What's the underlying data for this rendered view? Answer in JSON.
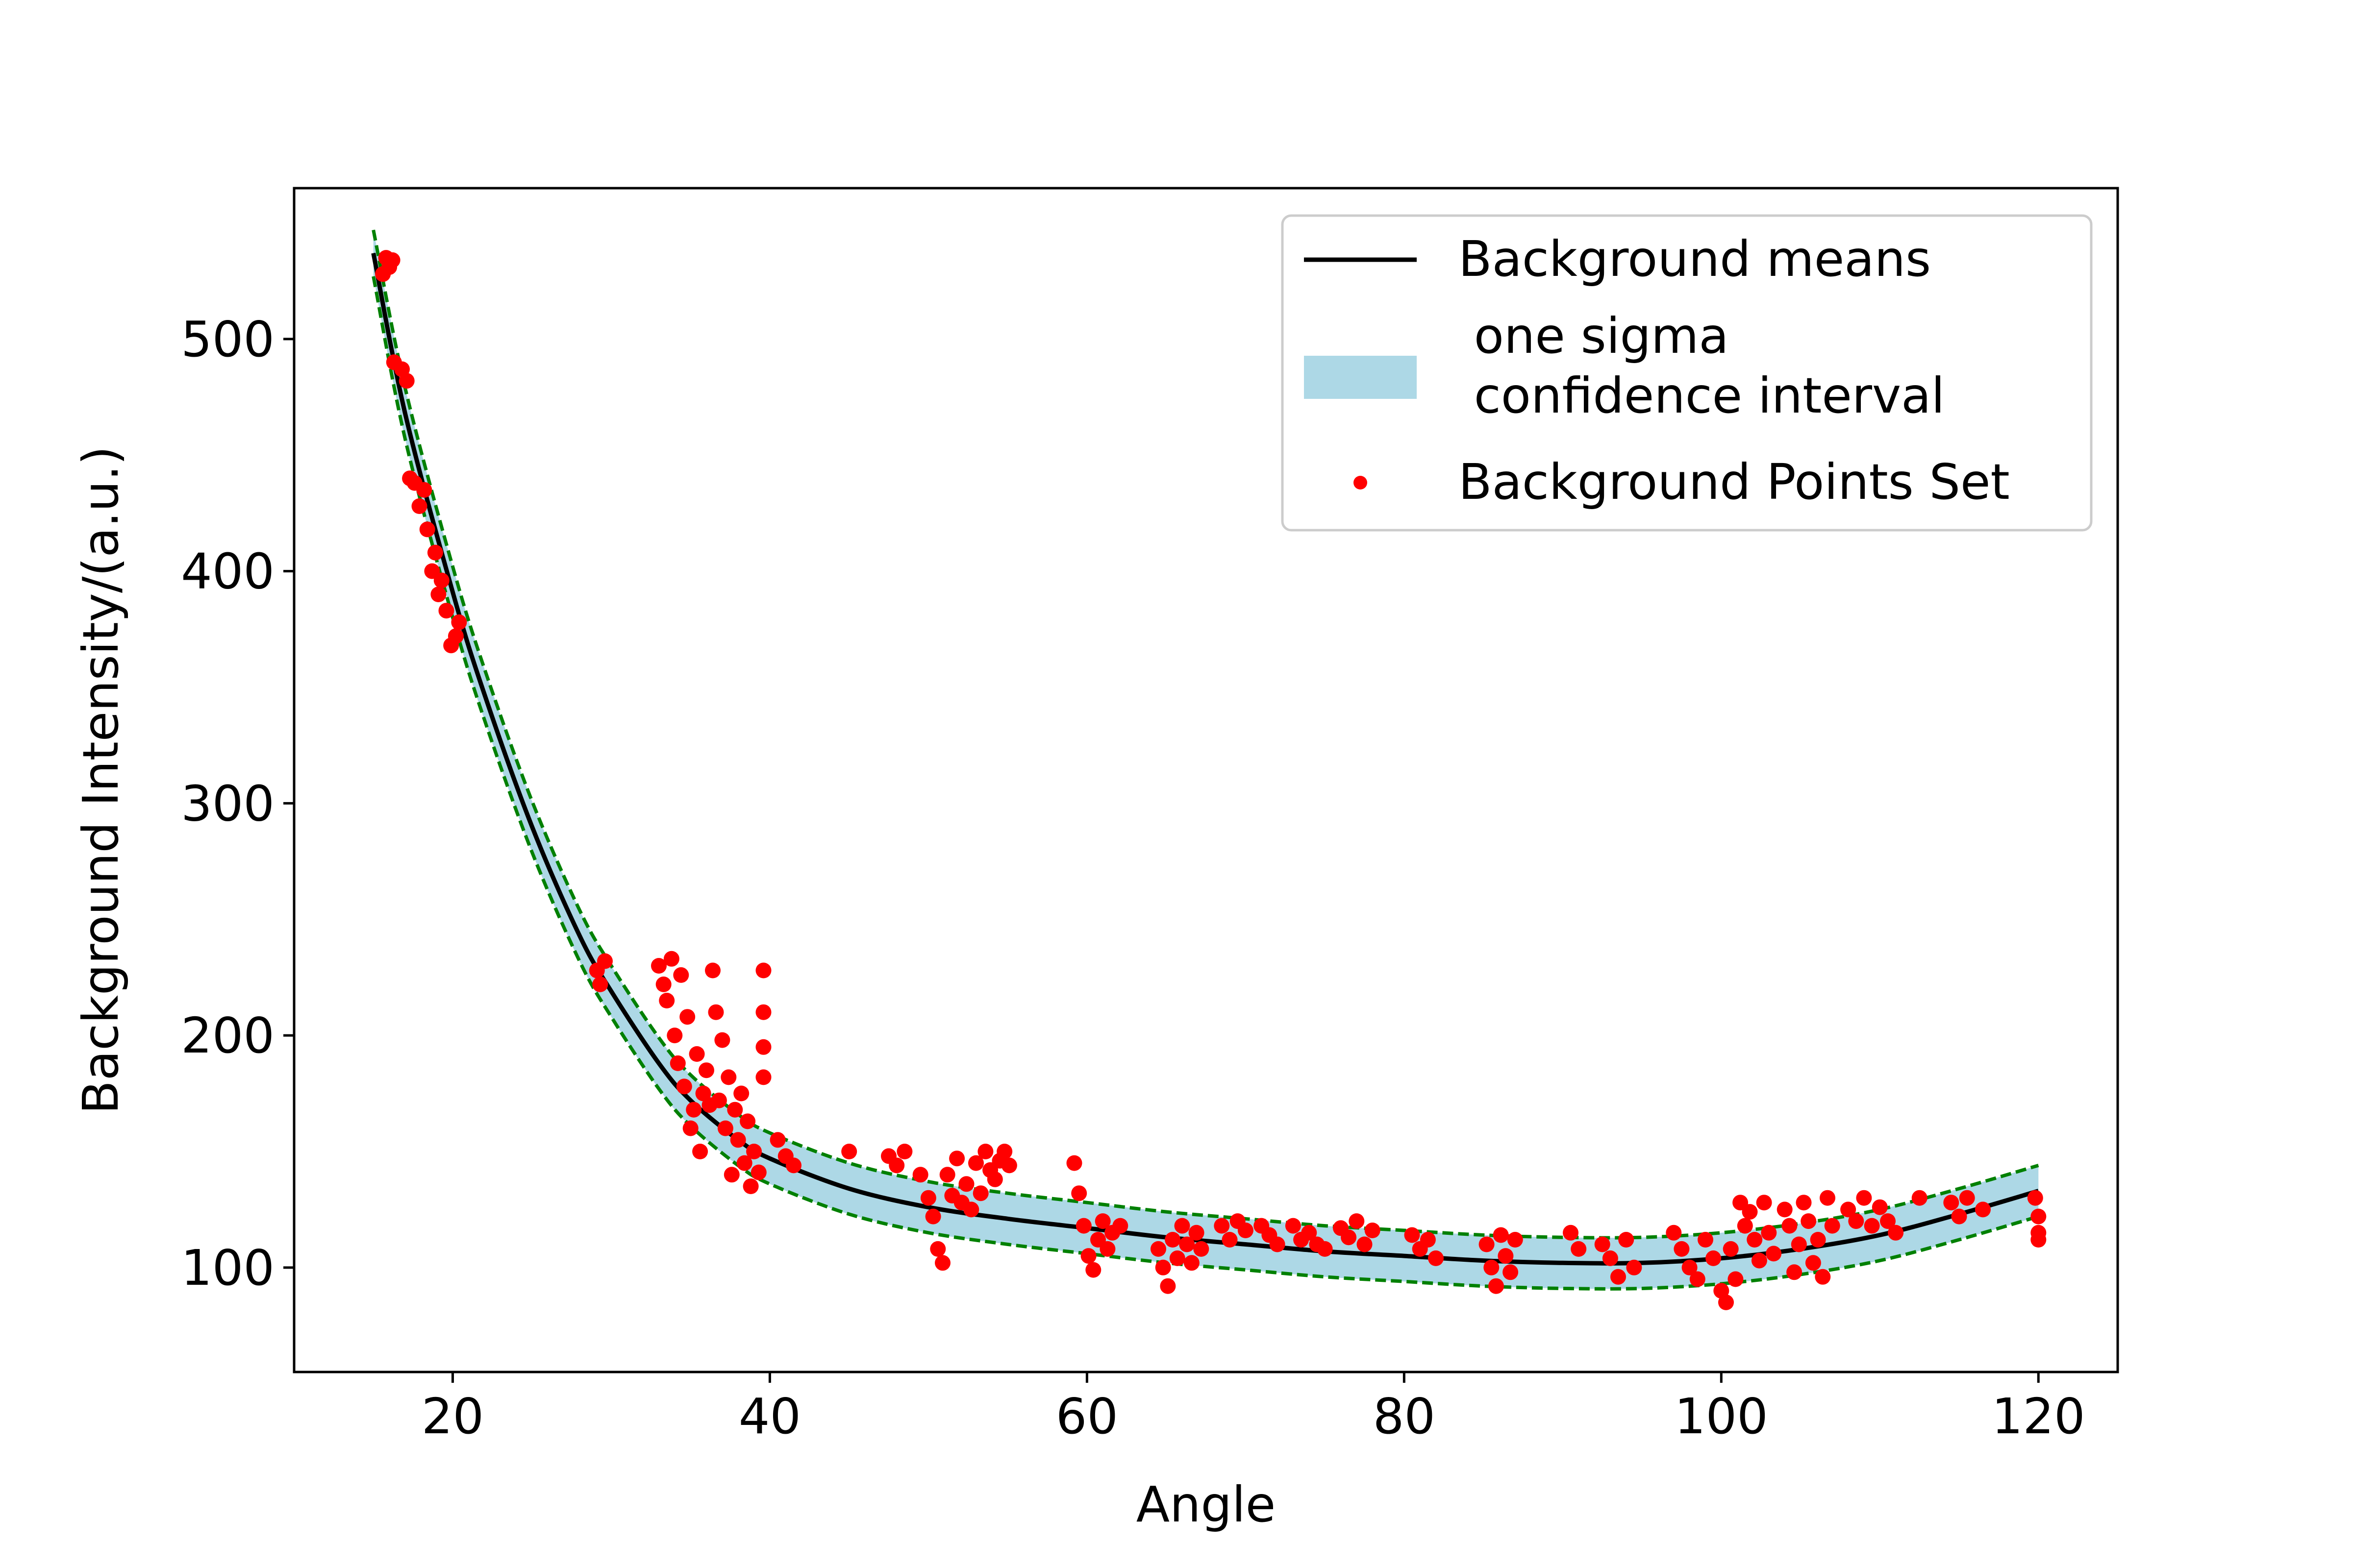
{
  "chart_data": {
    "type": "scatter",
    "title": "",
    "xlabel": "Angle",
    "ylabel": "Background Intensity/(a.u.)",
    "xlim": [
      10,
      125
    ],
    "ylim": [
      55,
      565
    ],
    "xticks": [
      20,
      40,
      60,
      80,
      100,
      120
    ],
    "yticks": [
      100,
      200,
      300,
      400,
      500
    ],
    "grid": false,
    "legend_position": "upper right",
    "colors": {
      "mean": "#000000",
      "band": "#add8e6",
      "band_edge": "#008000",
      "points": "#ff0000"
    },
    "series": [
      {
        "name": "Background means",
        "kind": "line",
        "x": [
          15,
          17,
          20,
          22,
          25,
          28,
          30,
          33,
          35,
          38,
          40,
          45,
          50,
          55,
          60,
          65,
          70,
          75,
          80,
          85,
          90,
          95,
          100,
          105,
          110,
          115,
          120
        ],
        "y": [
          537,
          468,
          391,
          347,
          290,
          243,
          219,
          188,
          172,
          155,
          147,
          134,
          126,
          121,
          117,
          113,
          110,
          107,
          105,
          103,
          102,
          102,
          104,
          108,
          114,
          123,
          133
        ]
      },
      {
        "name": "one sigma\n confidence interval",
        "kind": "band",
        "x": [
          15,
          17,
          20,
          22,
          25,
          28,
          30,
          33,
          35,
          38,
          40,
          45,
          50,
          55,
          60,
          65,
          70,
          75,
          80,
          85,
          90,
          95,
          100,
          105,
          110,
          115,
          120
        ],
        "lower": [
          527,
          457,
          380,
          336,
          279,
          232,
          208,
          177,
          161,
          144,
          136,
          123,
          115,
          110,
          106,
          102,
          99,
          96,
          94,
          92,
          91,
          91,
          93,
          97,
          103,
          112,
          122
        ],
        "upper": [
          547,
          479,
          402,
          358,
          301,
          254,
          230,
          199,
          183,
          166,
          158,
          145,
          137,
          132,
          128,
          124,
          121,
          118,
          116,
          114,
          113,
          113,
          115,
          119,
          125,
          134,
          144
        ]
      },
      {
        "name": "Background Points Set",
        "kind": "scatter",
        "points": [
          [
            15.6,
            528
          ],
          [
            15.8,
            535
          ],
          [
            16.0,
            531
          ],
          [
            16.2,
            534
          ],
          [
            16.3,
            490
          ],
          [
            16.8,
            487
          ],
          [
            17.1,
            482
          ],
          [
            17.3,
            440
          ],
          [
            17.6,
            438
          ],
          [
            17.9,
            428
          ],
          [
            18.2,
            435
          ],
          [
            18.4,
            418
          ],
          [
            18.7,
            400
          ],
          [
            18.9,
            408
          ],
          [
            19.1,
            390
          ],
          [
            19.3,
            396
          ],
          [
            19.6,
            383
          ],
          [
            19.9,
            368
          ],
          [
            20.2,
            372
          ],
          [
            20.4,
            378
          ],
          [
            29.1,
            228
          ],
          [
            29.3,
            222
          ],
          [
            29.6,
            232
          ],
          [
            33.0,
            230
          ],
          [
            33.3,
            222
          ],
          [
            33.5,
            215
          ],
          [
            33.8,
            233
          ],
          [
            34.0,
            200
          ],
          [
            34.2,
            188
          ],
          [
            34.4,
            226
          ],
          [
            34.6,
            178
          ],
          [
            34.8,
            208
          ],
          [
            35.0,
            160
          ],
          [
            35.2,
            168
          ],
          [
            35.4,
            192
          ],
          [
            35.6,
            150
          ],
          [
            35.8,
            175
          ],
          [
            36.0,
            185
          ],
          [
            36.2,
            170
          ],
          [
            36.4,
            228
          ],
          [
            36.6,
            210
          ],
          [
            36.8,
            172
          ],
          [
            37.0,
            198
          ],
          [
            37.2,
            160
          ],
          [
            37.4,
            182
          ],
          [
            37.6,
            140
          ],
          [
            37.8,
            168
          ],
          [
            38.0,
            155
          ],
          [
            38.2,
            175
          ],
          [
            38.4,
            145
          ],
          [
            38.6,
            163
          ],
          [
            38.8,
            135
          ],
          [
            39.0,
            150
          ],
          [
            39.3,
            141
          ],
          [
            39.6,
            228
          ],
          [
            39.6,
            210
          ],
          [
            39.6,
            195
          ],
          [
            39.6,
            182
          ],
          [
            40.5,
            155
          ],
          [
            41.0,
            148
          ],
          [
            41.5,
            144
          ],
          [
            45.0,
            150
          ],
          [
            47.5,
            148
          ],
          [
            48.0,
            144
          ],
          [
            48.5,
            150
          ],
          [
            49.5,
            140
          ],
          [
            50.0,
            130
          ],
          [
            50.3,
            122
          ],
          [
            50.6,
            108
          ],
          [
            50.9,
            102
          ],
          [
            51.2,
            140
          ],
          [
            51.5,
            131
          ],
          [
            51.8,
            147
          ],
          [
            52.1,
            128
          ],
          [
            52.4,
            136
          ],
          [
            52.7,
            125
          ],
          [
            53.0,
            145
          ],
          [
            53.3,
            132
          ],
          [
            53.6,
            150
          ],
          [
            53.9,
            142
          ],
          [
            54.2,
            138
          ],
          [
            54.5,
            146
          ],
          [
            54.8,
            150
          ],
          [
            55.1,
            144
          ],
          [
            59.2,
            145
          ],
          [
            59.5,
            132
          ],
          [
            59.8,
            118
          ],
          [
            60.1,
            105
          ],
          [
            60.4,
            99
          ],
          [
            60.7,
            112
          ],
          [
            61.0,
            120
          ],
          [
            61.3,
            108
          ],
          [
            61.6,
            115
          ],
          [
            62.1,
            118
          ],
          [
            64.5,
            108
          ],
          [
            64.8,
            100
          ],
          [
            65.1,
            92
          ],
          [
            65.4,
            112
          ],
          [
            65.7,
            104
          ],
          [
            66.0,
            118
          ],
          [
            66.3,
            110
          ],
          [
            66.6,
            102
          ],
          [
            66.9,
            115
          ],
          [
            67.2,
            108
          ],
          [
            68.5,
            118
          ],
          [
            69.0,
            112
          ],
          [
            69.5,
            120
          ],
          [
            70.0,
            116
          ],
          [
            71.0,
            118
          ],
          [
            71.5,
            114
          ],
          [
            72.0,
            110
          ],
          [
            73.0,
            118
          ],
          [
            73.5,
            112
          ],
          [
            74.0,
            115
          ],
          [
            74.5,
            110
          ],
          [
            75.0,
            108
          ],
          [
            76.0,
            117
          ],
          [
            76.5,
            113
          ],
          [
            77.0,
            120
          ],
          [
            77.5,
            110
          ],
          [
            78.0,
            116
          ],
          [
            80.5,
            114
          ],
          [
            81.0,
            108
          ],
          [
            81.5,
            112
          ],
          [
            82.0,
            104
          ],
          [
            85.2,
            110
          ],
          [
            85.5,
            100
          ],
          [
            85.8,
            92
          ],
          [
            86.1,
            114
          ],
          [
            86.4,
            105
          ],
          [
            86.7,
            98
          ],
          [
            87.0,
            112
          ],
          [
            90.5,
            115
          ],
          [
            91.0,
            108
          ],
          [
            92.5,
            110
          ],
          [
            93.0,
            104
          ],
          [
            93.5,
            96
          ],
          [
            94.0,
            112
          ],
          [
            94.5,
            100
          ],
          [
            97.0,
            115
          ],
          [
            97.5,
            108
          ],
          [
            98.0,
            100
          ],
          [
            98.5,
            95
          ],
          [
            99.0,
            112
          ],
          [
            99.5,
            104
          ],
          [
            100.0,
            90
          ],
          [
            100.3,
            85
          ],
          [
            100.6,
            108
          ],
          [
            100.9,
            95
          ],
          [
            101.2,
            128
          ],
          [
            101.5,
            118
          ],
          [
            101.8,
            124
          ],
          [
            102.1,
            112
          ],
          [
            102.4,
            103
          ],
          [
            102.7,
            128
          ],
          [
            103.0,
            115
          ],
          [
            103.3,
            106
          ],
          [
            104.0,
            125
          ],
          [
            104.3,
            118
          ],
          [
            104.6,
            98
          ],
          [
            104.9,
            110
          ],
          [
            105.2,
            128
          ],
          [
            105.5,
            120
          ],
          [
            105.8,
            102
          ],
          [
            106.1,
            112
          ],
          [
            106.4,
            96
          ],
          [
            106.7,
            130
          ],
          [
            107.0,
            118
          ],
          [
            108.0,
            125
          ],
          [
            108.5,
            120
          ],
          [
            109.0,
            130
          ],
          [
            109.5,
            118
          ],
          [
            110.0,
            126
          ],
          [
            110.5,
            120
          ],
          [
            111.0,
            115
          ],
          [
            112.5,
            130
          ],
          [
            114.5,
            128
          ],
          [
            115.0,
            122
          ],
          [
            115.5,
            130
          ],
          [
            116.5,
            125
          ],
          [
            119.8,
            130
          ],
          [
            120.0,
            122
          ],
          [
            120.0,
            115
          ],
          [
            120.0,
            112
          ]
        ]
      }
    ]
  }
}
